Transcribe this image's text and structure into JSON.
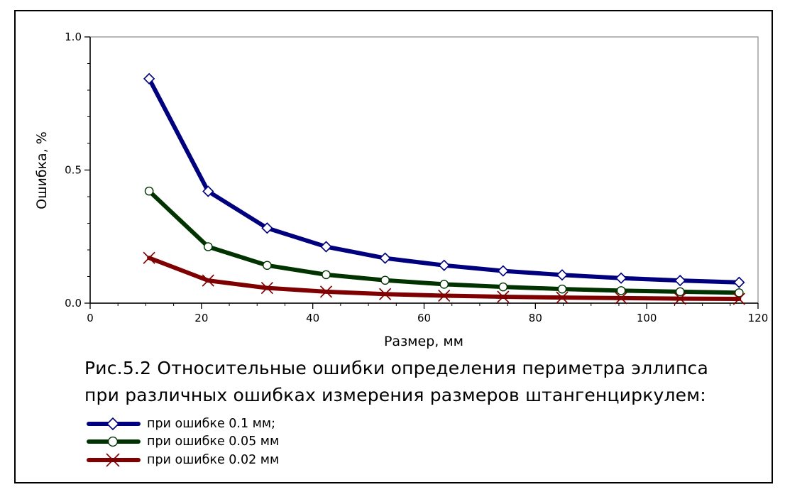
{
  "chart_data": {
    "type": "line",
    "xlabel": "Размер, мм",
    "ylabel": "Ошибка, %",
    "xlim": [
      0,
      120
    ],
    "ylim": [
      0.0,
      1.0
    ],
    "x_ticks": [
      "0",
      "20",
      "40",
      "60",
      "80",
      "100",
      "120"
    ],
    "y_ticks": [
      "0.0",
      "0.5",
      "1.0"
    ],
    "grid": false,
    "x": [
      10.6,
      21.2,
      31.8,
      42.4,
      53.0,
      63.6,
      74.2,
      84.8,
      95.4,
      106.0,
      116.6
    ],
    "series": [
      {
        "name": "при ошибке 0.1 мм;",
        "color": "#00007f",
        "marker": "diamond",
        "values": [
          0.843,
          0.42,
          0.282,
          0.212,
          0.169,
          0.142,
          0.121,
          0.106,
          0.094,
          0.085,
          0.078
        ]
      },
      {
        "name": "при ошибке 0.05 мм",
        "color": "#003300",
        "marker": "circle",
        "values": [
          0.421,
          0.212,
          0.142,
          0.107,
          0.086,
          0.071,
          0.061,
          0.053,
          0.047,
          0.043,
          0.039
        ]
      },
      {
        "name": "при ошибке 0.02 мм",
        "color": "#7f0000",
        "marker": "x",
        "values": [
          0.17,
          0.085,
          0.057,
          0.043,
          0.034,
          0.028,
          0.024,
          0.021,
          0.019,
          0.017,
          0.016
        ]
      }
    ]
  },
  "caption": {
    "line1": "Рис.5.2 Относительные ошибки определения периметра эллипса",
    "line2": "при различных ошибках измерения  размеров штангенциркулем:"
  }
}
